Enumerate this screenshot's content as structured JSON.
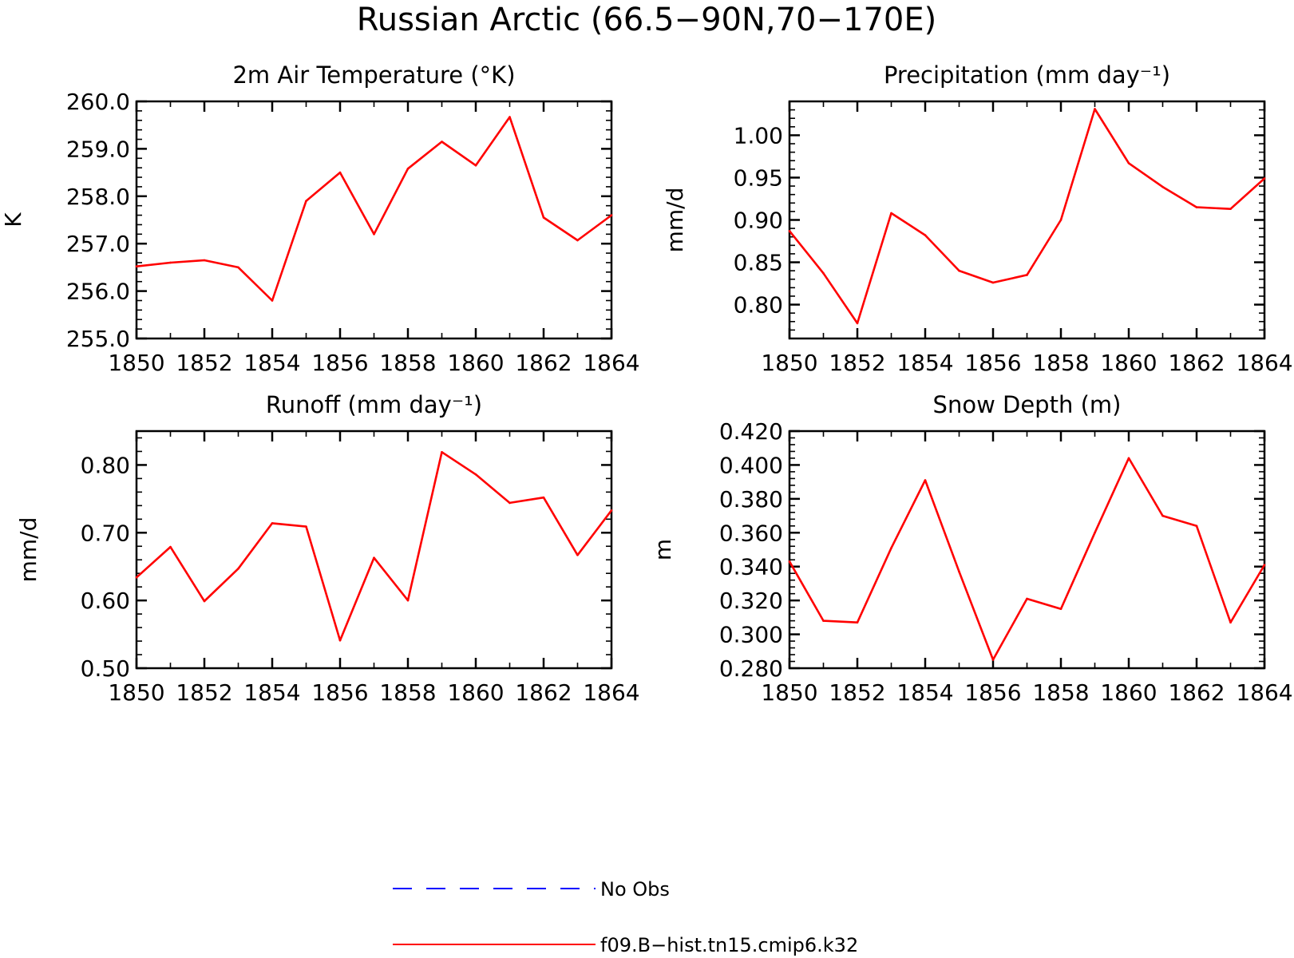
{
  "title": "Russian Arctic (66.5−90N,70−170E)",
  "colors": {
    "model": "#ff0000",
    "obs": "#0000ff",
    "frame": "#000000"
  },
  "legend": {
    "entries": [
      {
        "label": "No Obs",
        "color": "#0000ff",
        "style": "dashed"
      },
      {
        "label": "f09.B−hist.tn15.cmip6.k32",
        "color": "#ff0000",
        "style": "solid"
      }
    ]
  },
  "chart_data": [
    {
      "type": "line",
      "title": "2m Air Temperature (°K)",
      "ylabel": "K",
      "xlabel": "",
      "xlim": [
        1850,
        1864
      ],
      "ylim": [
        255.0,
        260.0
      ],
      "x_ticks": [
        1850,
        1852,
        1854,
        1856,
        1858,
        1860,
        1862,
        1864
      ],
      "y_ticks": [
        "255.0",
        "256.0",
        "257.0",
        "258.0",
        "259.0",
        "260.0"
      ],
      "x": [
        1850,
        1851,
        1852,
        1853,
        1854,
        1855,
        1856,
        1857,
        1858,
        1859,
        1860,
        1861,
        1862,
        1863,
        1864
      ],
      "series": [
        {
          "name": "f09.B−hist.tn15.cmip6.k32",
          "values": [
            256.52,
            256.6,
            256.65,
            256.5,
            255.8,
            257.9,
            258.5,
            257.2,
            258.58,
            259.15,
            258.65,
            259.67,
            257.55,
            257.07,
            257.6
          ]
        }
      ]
    },
    {
      "type": "line",
      "title": "Precipitation (mm day⁻¹)",
      "ylabel": "mm/d",
      "xlabel": "",
      "xlim": [
        1850,
        1864
      ],
      "ylim": [
        0.76,
        1.04
      ],
      "x_ticks": [
        1850,
        1852,
        1854,
        1856,
        1858,
        1860,
        1862,
        1864
      ],
      "y_ticks": [
        "0.80",
        "0.85",
        "0.90",
        "0.95",
        "1.00"
      ],
      "x": [
        1850,
        1851,
        1852,
        1853,
        1854,
        1855,
        1856,
        1857,
        1858,
        1859,
        1860,
        1861,
        1862,
        1863,
        1864
      ],
      "series": [
        {
          "name": "f09.B−hist.tn15.cmip6.k32",
          "values": [
            0.887,
            0.837,
            0.778,
            0.908,
            0.882,
            0.84,
            0.826,
            0.835,
            0.9,
            1.031,
            0.967,
            0.939,
            0.915,
            0.913,
            0.949
          ]
        }
      ]
    },
    {
      "type": "line",
      "title": "Runoff (mm day⁻¹)",
      "ylabel": "mm/d",
      "xlabel": "",
      "xlim": [
        1850,
        1864
      ],
      "ylim": [
        0.5,
        0.85
      ],
      "x_ticks": [
        1850,
        1852,
        1854,
        1856,
        1858,
        1860,
        1862,
        1864
      ],
      "y_ticks": [
        "0.50",
        "0.60",
        "0.70",
        "0.80"
      ],
      "x": [
        1850,
        1851,
        1852,
        1853,
        1854,
        1855,
        1856,
        1857,
        1858,
        1859,
        1860,
        1861,
        1862,
        1863,
        1864
      ],
      "series": [
        {
          "name": "f09.B−hist.tn15.cmip6.k32",
          "values": [
            0.634,
            0.679,
            0.599,
            0.647,
            0.714,
            0.709,
            0.541,
            0.663,
            0.6,
            0.819,
            0.786,
            0.744,
            0.752,
            0.667,
            0.733
          ]
        }
      ]
    },
    {
      "type": "line",
      "title": "Snow Depth (m)",
      "ylabel": "m",
      "xlabel": "",
      "xlim": [
        1850,
        1864
      ],
      "ylim": [
        0.28,
        0.42
      ],
      "x_ticks": [
        1850,
        1852,
        1854,
        1856,
        1858,
        1860,
        1862,
        1864
      ],
      "y_ticks": [
        "0.280",
        "0.300",
        "0.320",
        "0.340",
        "0.360",
        "0.380",
        "0.400",
        "0.420"
      ],
      "x": [
        1850,
        1851,
        1852,
        1853,
        1854,
        1855,
        1856,
        1857,
        1858,
        1859,
        1860,
        1861,
        1862,
        1863,
        1864
      ],
      "series": [
        {
          "name": "f09.B−hist.tn15.cmip6.k32",
          "values": [
            0.343,
            0.308,
            0.307,
            0.351,
            0.391,
            0.337,
            0.285,
            0.321,
            0.315,
            0.36,
            0.404,
            0.37,
            0.364,
            0.307,
            0.341
          ]
        }
      ]
    }
  ]
}
